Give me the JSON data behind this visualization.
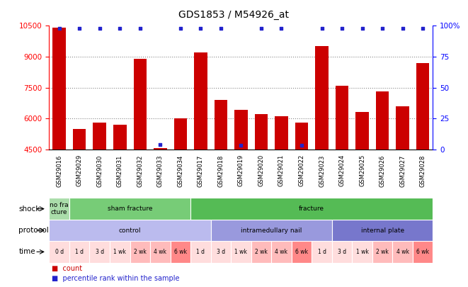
{
  "title": "GDS1853 / M54926_at",
  "samples": [
    "GSM29016",
    "GSM29029",
    "GSM29030",
    "GSM29031",
    "GSM29032",
    "GSM29033",
    "GSM29034",
    "GSM29017",
    "GSM29018",
    "GSM29019",
    "GSM29020",
    "GSM29021",
    "GSM29022",
    "GSM29023",
    "GSM29024",
    "GSM29025",
    "GSM29026",
    "GSM29027",
    "GSM29028"
  ],
  "bar_values": [
    10400,
    5500,
    5800,
    5700,
    8900,
    4550,
    6000,
    9200,
    6900,
    6400,
    6200,
    6100,
    5800,
    9500,
    7600,
    6300,
    7300,
    6600,
    8700
  ],
  "percentile_values": [
    98,
    98,
    98,
    98,
    98,
    4,
    98,
    98,
    98,
    3,
    98,
    98,
    3,
    98,
    98,
    98,
    98,
    98,
    98
  ],
  "ylim_left": [
    4500,
    10500
  ],
  "ylim_right": [
    0,
    100
  ],
  "yticks_left": [
    4500,
    6000,
    7500,
    9000,
    10500
  ],
  "yticks_right": [
    0,
    25,
    50,
    75,
    100
  ],
  "bar_color": "#cc0000",
  "percentile_color": "#2222cc",
  "bg_color": "#ffffff",
  "shock_row": {
    "label": "shock",
    "segments": [
      {
        "text": "no fra\ncture",
        "start": 0,
        "end": 1,
        "color": "#aaddaa"
      },
      {
        "text": "sham fracture",
        "start": 1,
        "end": 7,
        "color": "#77cc77"
      },
      {
        "text": "fracture",
        "start": 7,
        "end": 19,
        "color": "#55bb55"
      }
    ]
  },
  "protocol_row": {
    "label": "protocol",
    "segments": [
      {
        "text": "control",
        "start": 0,
        "end": 8,
        "color": "#bbbbee"
      },
      {
        "text": "intramedullary nail",
        "start": 8,
        "end": 14,
        "color": "#9999dd"
      },
      {
        "text": "internal plate",
        "start": 14,
        "end": 19,
        "color": "#7777cc"
      }
    ]
  },
  "time_row": {
    "label": "time",
    "cells": [
      "0 d",
      "1 d",
      "3 d",
      "1 wk",
      "2 wk",
      "4 wk",
      "6 wk",
      "1 d",
      "3 d",
      "1 wk",
      "2 wk",
      "4 wk",
      "6 wk",
      "1 d",
      "3 d",
      "1 wk",
      "2 wk",
      "4 wk",
      "6 wk"
    ],
    "colors": [
      "#ffdddd",
      "#ffdddd",
      "#ffdddd",
      "#ffdddd",
      "#ffbbbb",
      "#ffbbbb",
      "#ff8888",
      "#ffdddd",
      "#ffdddd",
      "#ffdddd",
      "#ffbbbb",
      "#ffbbbb",
      "#ff8888",
      "#ffdddd",
      "#ffdddd",
      "#ffdddd",
      "#ffbbbb",
      "#ffbbbb",
      "#ff8888"
    ]
  },
  "legend_count_color": "#cc0000",
  "legend_pct_color": "#2222cc",
  "dotted_line_color": "#888888",
  "title_fontsize": 10,
  "tick_fontsize": 7.5,
  "row_label_fontsize": 7.5
}
